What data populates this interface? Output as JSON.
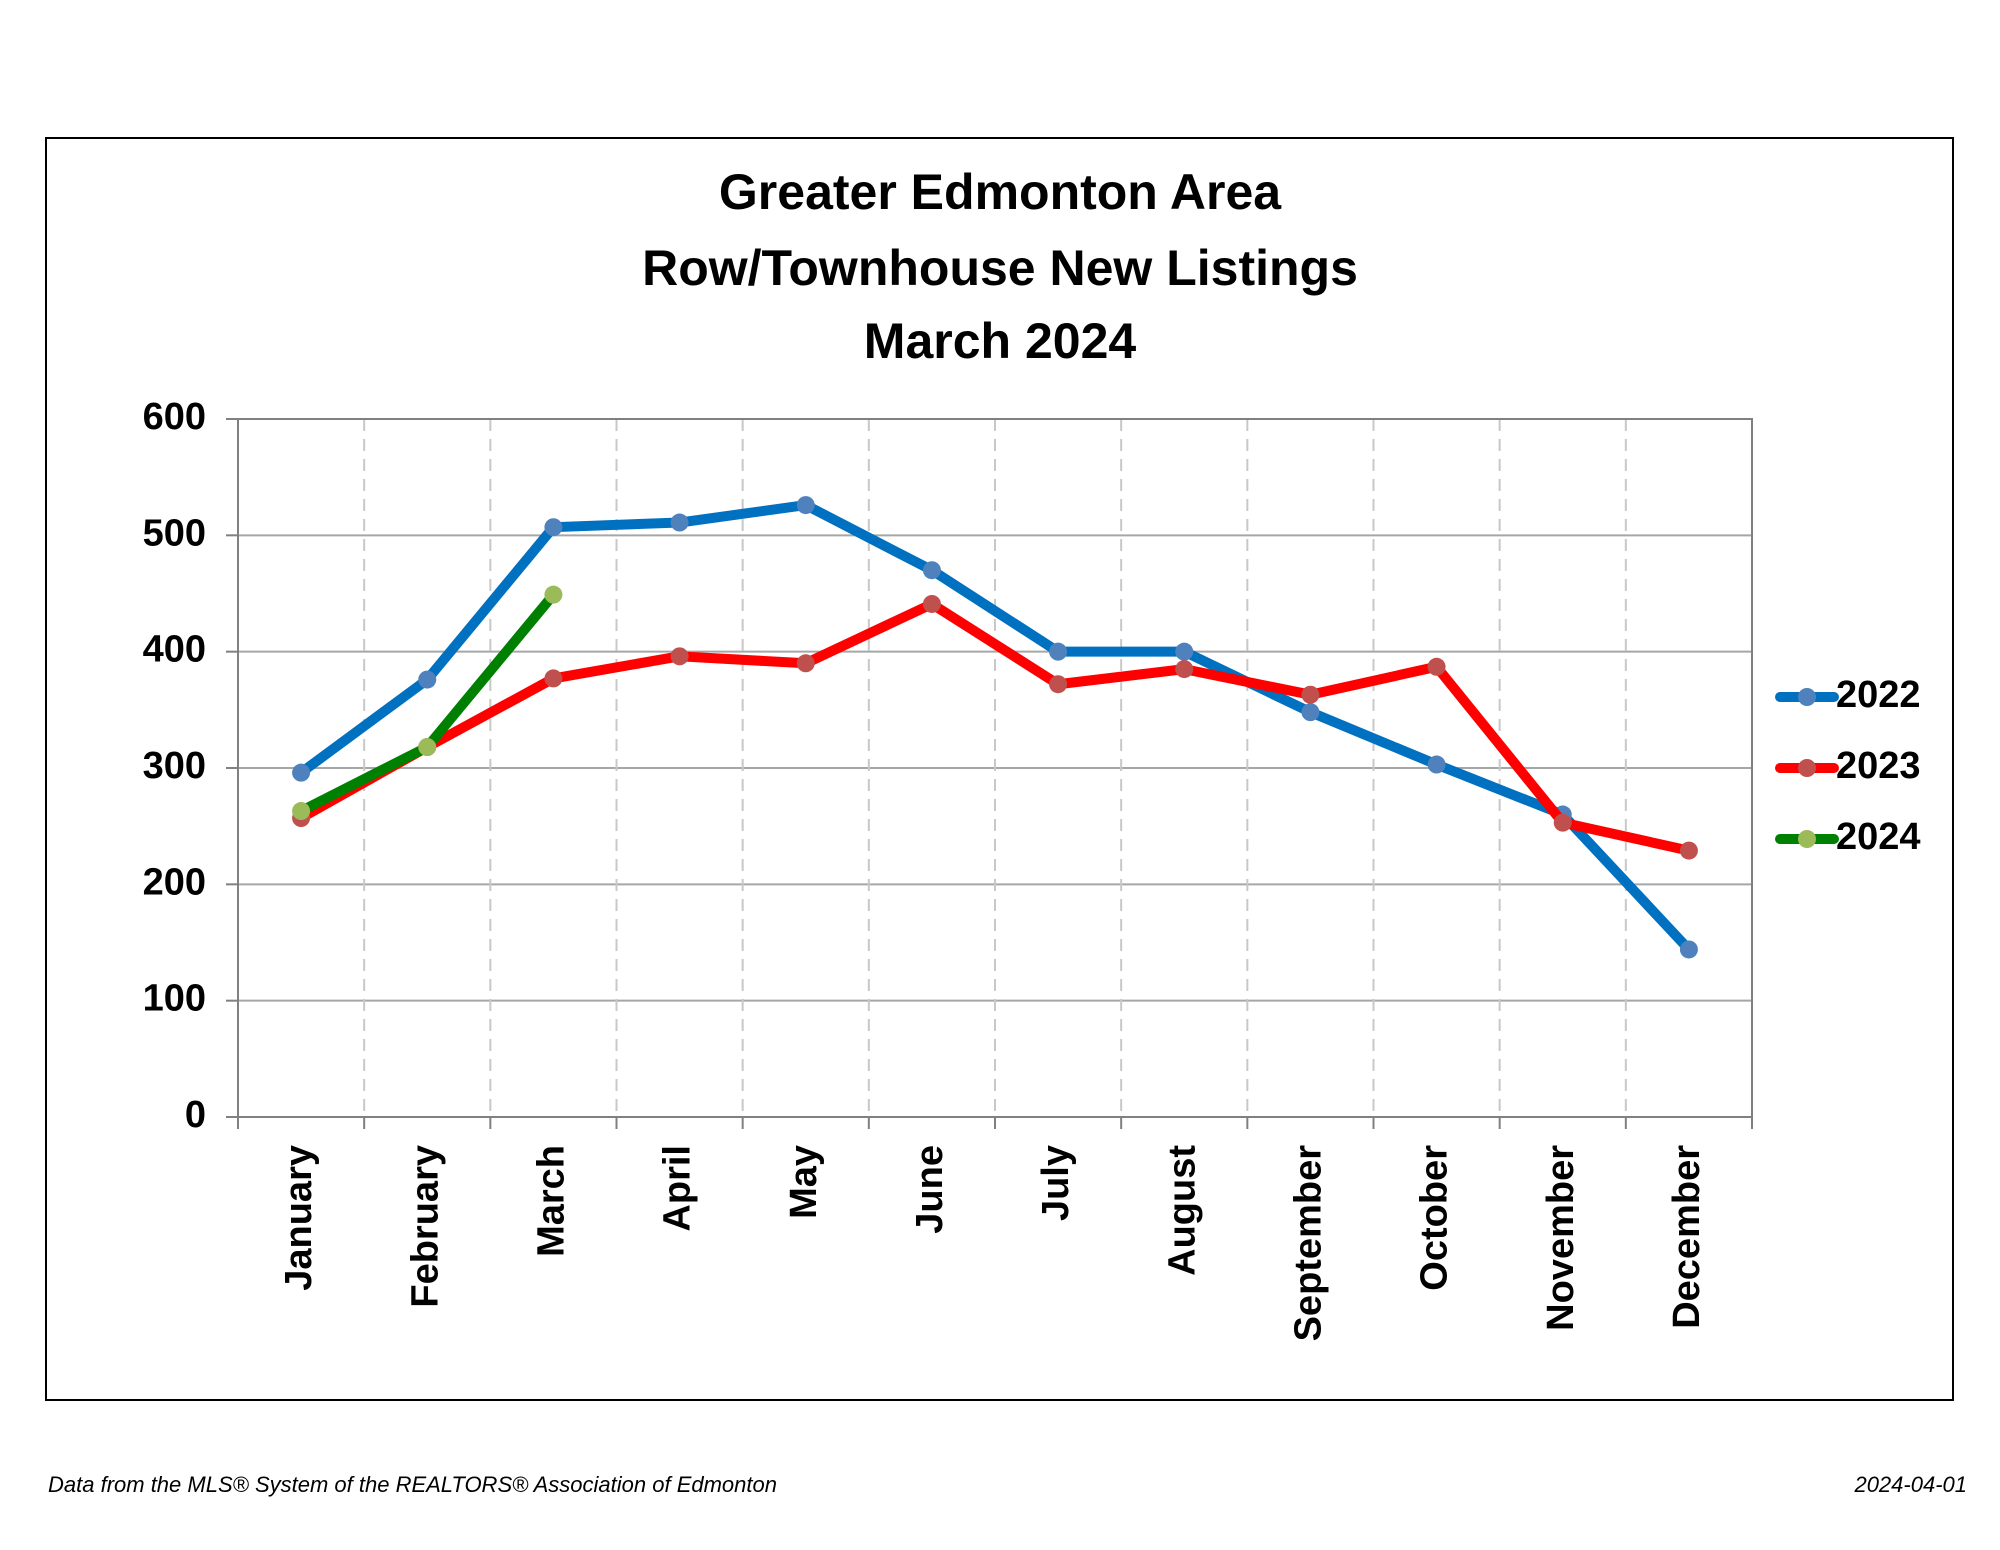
{
  "chart_data": {
    "type": "line",
    "title": [
      "Greater Edmonton Area",
      "Row/Townhouse New Listings",
      "March 2024"
    ],
    "categories": [
      "January",
      "February",
      "March",
      "April",
      "May",
      "June",
      "July",
      "August",
      "September",
      "October",
      "November",
      "December"
    ],
    "series": [
      {
        "name": "2022",
        "color": "#0070c0",
        "marker_color": "#4f81bd",
        "values": [
          296,
          376,
          507,
          511,
          526,
          470,
          400,
          400,
          348,
          303,
          260,
          144
        ]
      },
      {
        "name": "2023",
        "color": "#ff0000",
        "marker_color": "#c0504d",
        "values": [
          257,
          318,
          377,
          396,
          390,
          441,
          372,
          385,
          363,
          387,
          253,
          229
        ]
      },
      {
        "name": "2024",
        "color": "#008000",
        "marker_color": "#9bbb59",
        "values": [
          263,
          318,
          449,
          null,
          null,
          null,
          null,
          null,
          null,
          null,
          null,
          null
        ]
      }
    ],
    "ylim": [
      0,
      600
    ],
    "yticks": [
      0,
      100,
      200,
      300,
      400,
      500,
      600
    ],
    "grid": true,
    "legend": "right",
    "source": "Data from the MLS® System of the REALTORS® Association of Edmonton",
    "date": "2024-04-01"
  }
}
